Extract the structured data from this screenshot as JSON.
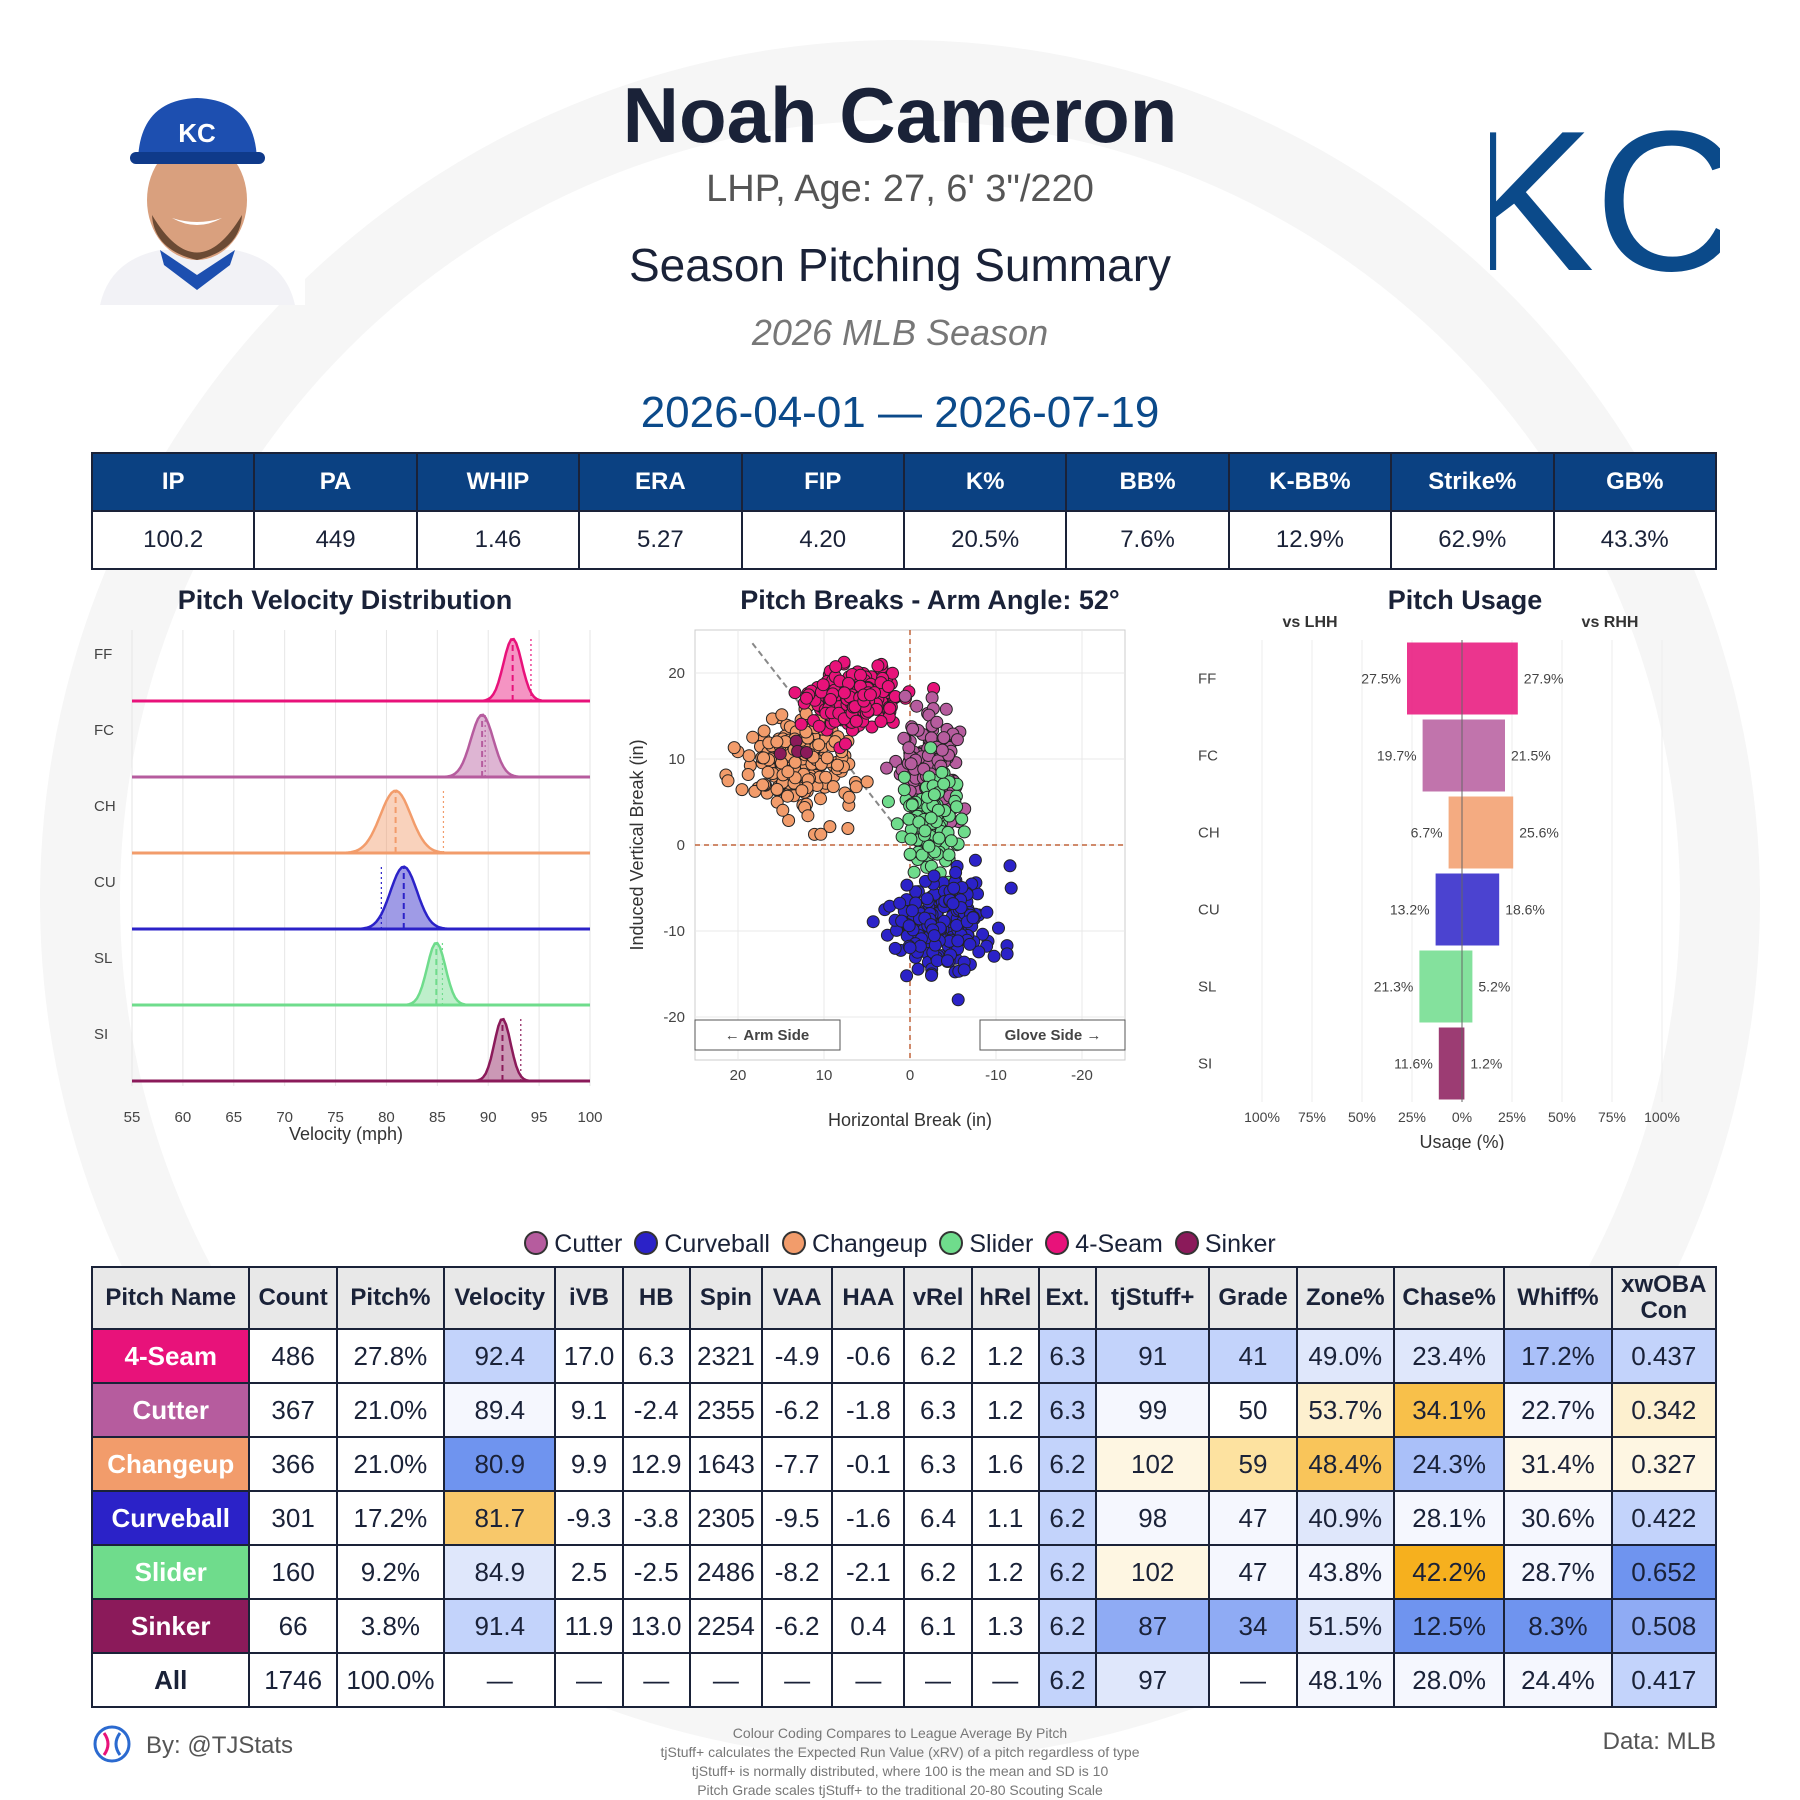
{
  "header": {
    "name": "Noah Cameron",
    "bio": "LHP, Age: 27, 6' 3\"/220",
    "summary_title": "Season Pitching Summary",
    "season": "2026 MLB Season",
    "date_range": "2026-04-01 — 2026-07-19",
    "team_logo_text": "KC",
    "cap_logo_text": "KC"
  },
  "season_stats": {
    "headers": [
      "IP",
      "PA",
      "WHIP",
      "ERA",
      "FIP",
      "K%",
      "BB%",
      "K-BB%",
      "Strike%",
      "GB%"
    ],
    "values": [
      "100.2",
      "449",
      "1.46",
      "5.27",
      "4.20",
      "20.5%",
      "7.6%",
      "12.9%",
      "62.9%",
      "43.3%"
    ]
  },
  "colors": {
    "4-Seam": "#e8127a",
    "Cutter": "#b65c9e",
    "Changeup": "#f29c6b",
    "Curveball": "#2b22c8",
    "Slider": "#6fdc8c",
    "Sinker": "#8b1a5a",
    "header_blue": "#0b4182",
    "kc_blue": "#0b4a8a"
  },
  "chart_data": [
    {
      "type": "area",
      "title": "Pitch Velocity Distribution",
      "xlabel": "Velocity (mph)",
      "xlim": [
        55,
        100
      ],
      "xticks": [
        "55",
        "60",
        "65",
        "70",
        "75",
        "80",
        "85",
        "90",
        "95",
        "100"
      ],
      "series": [
        {
          "name": "FF",
          "pitch": "4-Seam",
          "mean": 92.4,
          "league_avg": 94.2,
          "sd": 0.9
        },
        {
          "name": "FC",
          "pitch": "Cutter",
          "mean": 89.4,
          "league_avg": 89.7,
          "sd": 1.1
        },
        {
          "name": "CH",
          "pitch": "Changeup",
          "mean": 80.9,
          "league_avg": 85.6,
          "sd": 1.5
        },
        {
          "name": "CU",
          "pitch": "Curveball",
          "mean": 81.7,
          "league_avg": 79.5,
          "sd": 1.3
        },
        {
          "name": "SL",
          "pitch": "Slider",
          "mean": 84.9,
          "league_avg": 85.5,
          "sd": 0.9
        },
        {
          "name": "SI",
          "pitch": "Sinker",
          "mean": 91.4,
          "league_avg": 93.2,
          "sd": 0.8
        }
      ]
    },
    {
      "type": "scatter",
      "title": "Pitch Breaks - Arm Angle: 52°",
      "xlabel": "Horizontal Break (in)",
      "ylabel": "Induced Vertical Break (in)",
      "xlim": [
        25,
        -25
      ],
      "ylim": [
        -25,
        25
      ],
      "xticks": [
        "20",
        "10",
        "0",
        "-10",
        "-20"
      ],
      "yticks": [
        "20",
        "10",
        "0",
        "-10",
        "-20"
      ],
      "arm_angle_deg": 52,
      "arm_side_label": "← Arm Side",
      "glove_side_label": "Glove Side →",
      "clusters": [
        {
          "pitch": "Changeup",
          "hb": 12.9,
          "ivb": 9.9,
          "sx": 3.0,
          "sy": 2.8,
          "n": 230
        },
        {
          "pitch": "4-Seam",
          "hb": 6.3,
          "ivb": 17.0,
          "sx": 2.6,
          "sy": 1.7,
          "n": 220
        },
        {
          "pitch": "Cutter",
          "hb": -2.4,
          "ivb": 9.1,
          "sx": 1.6,
          "sy": 3.2,
          "n": 180
        },
        {
          "pitch": "Slider",
          "hb": -2.5,
          "ivb": 2.5,
          "sx": 1.7,
          "sy": 3.0,
          "n": 120
        },
        {
          "pitch": "Curveball",
          "hb": -3.8,
          "ivb": -9.3,
          "sx": 2.8,
          "sy": 3.0,
          "n": 220
        },
        {
          "pitch": "Sinker",
          "hb": 13.0,
          "ivb": 11.9,
          "sx": 1.2,
          "sy": 1.2,
          "n": 4
        }
      ]
    },
    {
      "type": "bar",
      "title": "Pitch Usage",
      "xlabel": "Usage (%)",
      "left_label": "vs LHH",
      "right_label": "vs RHH",
      "xticks": [
        "100%",
        "75%",
        "50%",
        "25%",
        "0%",
        "25%",
        "50%",
        "75%",
        "100%"
      ],
      "categories": [
        "FF",
        "FC",
        "CH",
        "CU",
        "SL",
        "SI"
      ],
      "pitches": [
        "4-Seam",
        "Cutter",
        "Changeup",
        "Curveball",
        "Slider",
        "Sinker"
      ],
      "series": [
        {
          "name": "vs LHH",
          "values": [
            27.5,
            19.7,
            6.7,
            13.2,
            21.3,
            11.6
          ],
          "labels": [
            "27.5%",
            "19.7%",
            "6.7%",
            "13.2%",
            "21.3%",
            "11.6%"
          ]
        },
        {
          "name": "vs RHH",
          "values": [
            27.9,
            21.5,
            25.6,
            18.6,
            5.2,
            1.2
          ],
          "labels": [
            "27.9%",
            "21.5%",
            "25.6%",
            "18.6%",
            "5.2%",
            "1.2%"
          ]
        }
      ]
    },
    {
      "type": "table",
      "columns": [
        "Pitch Name",
        "Count",
        "Pitch%",
        "Velocity",
        "iVB",
        "HB",
        "Spin",
        "VAA",
        "HAA",
        "vRel",
        "hRel",
        "Ext.",
        "tjStuff+",
        "Grade",
        "Zone%",
        "Chase%",
        "Whiff%",
        "xwOBA Con"
      ],
      "rows": [
        {
          "cells": [
            "4-Seam",
            "486",
            "27.8%",
            "92.4",
            "17.0",
            "6.3",
            "2321",
            "-4.9",
            "-0.6",
            "6.2",
            "1.2",
            "6.3",
            "91",
            "41",
            "49.0%",
            "23.4%",
            "17.2%",
            "0.437"
          ],
          "bg": [
            "#e8127a",
            "#fff",
            "#fff",
            "#c3d3fb",
            "#fff",
            "#fff",
            "#fff",
            "#fff",
            "#fff",
            "#fff",
            "#fff",
            "#c3d3fb",
            "#c3d3fb",
            "#c3d3fb",
            "#dfe7fb",
            "#dfe7fb",
            "#aac0f9",
            "#c3d3fb"
          ]
        },
        {
          "cells": [
            "Cutter",
            "367",
            "21.0%",
            "89.4",
            "9.1",
            "-2.4",
            "2355",
            "-6.2",
            "-1.8",
            "6.3",
            "1.2",
            "6.3",
            "99",
            "50",
            "53.7%",
            "34.1%",
            "22.7%",
            "0.342"
          ],
          "bg": [
            "#b65c9e",
            "#fff",
            "#fff",
            "#f5f7fe",
            "#fff",
            "#fff",
            "#fff",
            "#fff",
            "#fff",
            "#fff",
            "#fff",
            "#c3d3fb",
            "#f5f7fe",
            "#fff",
            "#fdf0cf",
            "#f8c04a",
            "#f5f7fe",
            "#fdf0cf"
          ]
        },
        {
          "cells": [
            "Changeup",
            "366",
            "21.0%",
            "80.9",
            "9.9",
            "12.9",
            "1643",
            "-7.7",
            "-0.1",
            "6.3",
            "1.6",
            "6.2",
            "102",
            "59",
            "48.4%",
            "24.3%",
            "31.4%",
            "0.327"
          ],
          "bg": [
            "#f29c6b",
            "#fff",
            "#fff",
            "#6f94ef",
            "#fff",
            "#fff",
            "#fff",
            "#fff",
            "#fff",
            "#fff",
            "#fff",
            "#c3d3fb",
            "#fef6e2",
            "#fde2a0",
            "#f9c55a",
            "#aac0f9",
            "#fef8ea",
            "#fef6e2"
          ]
        },
        {
          "cells": [
            "Curveball",
            "301",
            "17.2%",
            "81.7",
            "-9.3",
            "-3.8",
            "2305",
            "-9.5",
            "-1.6",
            "6.4",
            "1.1",
            "6.2",
            "98",
            "47",
            "40.9%",
            "28.1%",
            "30.6%",
            "0.422"
          ],
          "bg": [
            "#2b22c8",
            "#fff",
            "#fff",
            "#f8c86a",
            "#fff",
            "#fff",
            "#fff",
            "#fff",
            "#fff",
            "#fff",
            "#fff",
            "#c3d3fb",
            "#f5f7fe",
            "#f5f7fe",
            "#dfe7fb",
            "#f5f7fe",
            "#f5f7fe",
            "#c3d3fb"
          ]
        },
        {
          "cells": [
            "Slider",
            "160",
            "9.2%",
            "84.9",
            "2.5",
            "-2.5",
            "2486",
            "-8.2",
            "-2.1",
            "6.2",
            "1.2",
            "6.2",
            "102",
            "47",
            "43.8%",
            "42.2%",
            "28.7%",
            "0.652"
          ],
          "bg": [
            "#6fdc8c",
            "#fff",
            "#fff",
            "#dfe7fb",
            "#fff",
            "#fff",
            "#fff",
            "#fff",
            "#fff",
            "#fff",
            "#fff",
            "#c3d3fb",
            "#fef6e2",
            "#f5f7fe",
            "#f5f7fe",
            "#f6b01e",
            "#f5f7fe",
            "#6f94ef"
          ]
        },
        {
          "cells": [
            "Sinker",
            "66",
            "3.8%",
            "91.4",
            "11.9",
            "13.0",
            "2254",
            "-6.2",
            "0.4",
            "6.1",
            "1.3",
            "6.2",
            "87",
            "34",
            "51.5%",
            "12.5%",
            "8.3%",
            "0.508"
          ],
          "bg": [
            "#8b1a5a",
            "#fff",
            "#fff",
            "#c3d3fb",
            "#fff",
            "#fff",
            "#fff",
            "#fff",
            "#fff",
            "#fff",
            "#fff",
            "#c3d3fb",
            "#8fabf4",
            "#8fabf4",
            "#dfe7fb",
            "#6f94ef",
            "#6f94ef",
            "#8fabf4"
          ]
        },
        {
          "cells": [
            "All",
            "1746",
            "100.0%",
            "—",
            "—",
            "—",
            "—",
            "—",
            "—",
            "—",
            "—",
            "6.2",
            "97",
            "—",
            "48.1%",
            "28.0%",
            "24.4%",
            "0.417"
          ],
          "bg": [
            "#fff",
            "#fff",
            "#fff",
            "#fff",
            "#fff",
            "#fff",
            "#fff",
            "#fff",
            "#fff",
            "#fff",
            "#fff",
            "#c3d3fb",
            "#dfe7fb",
            "#fff",
            "#f5f7fe",
            "#f5f7fe",
            "#f5f7fe",
            "#c3d3fb"
          ]
        }
      ]
    }
  ],
  "legend": [
    "Cutter",
    "Curveball",
    "Changeup",
    "Slider",
    "4-Seam",
    "Sinker"
  ],
  "footer": {
    "byline": "By: @TJStats",
    "data_source": "Data: MLB",
    "notes": [
      "Colour Coding Compares to League Average By Pitch",
      "tjStuff+ calculates the Expected Run Value (xRV) of a pitch regardless of type",
      "tjStuff+ is normally distributed, where 100 is the mean and SD is 10",
      "Pitch Grade scales tjStuff+ to the traditional 20-80 Scouting Scale"
    ]
  }
}
